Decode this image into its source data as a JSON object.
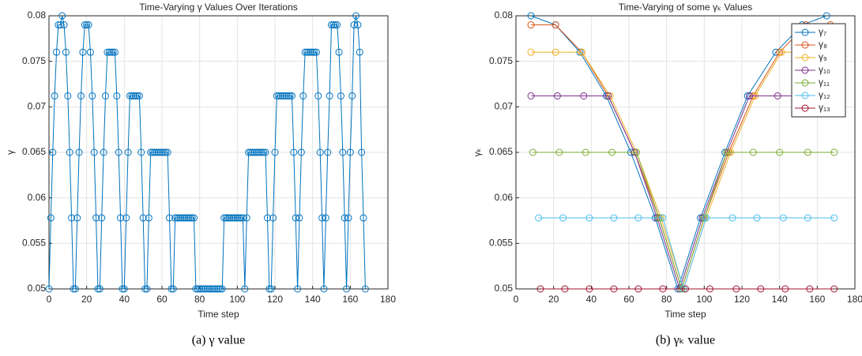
{
  "chart_data": [
    {
      "type": "line",
      "title": "Time-Varying γ Values Over Iterations",
      "xlabel": "Time step",
      "ylabel": "γ",
      "caption": "(a) γ value",
      "xlim": [
        0,
        180
      ],
      "xticks": [
        0,
        20,
        40,
        60,
        80,
        100,
        120,
        140,
        160,
        180
      ],
      "ylim": [
        0.05,
        0.08
      ],
      "yticks": [
        0.05,
        0.055,
        0.06,
        0.065,
        0.07,
        0.075,
        0.08
      ],
      "grid": true,
      "series": [
        {
          "color": "#0072BD",
          "x": [
            0,
            1,
            2,
            3,
            4,
            5,
            6,
            7,
            8,
            9,
            10,
            11,
            12,
            13,
            14,
            15,
            16,
            17,
            18,
            19,
            20,
            21,
            22,
            23,
            24,
            25,
            26,
            27,
            28,
            29,
            30,
            31,
            32,
            33,
            34,
            35,
            36,
            37,
            38,
            39,
            40,
            41,
            42,
            43,
            44,
            45,
            46,
            47,
            48,
            49,
            50,
            51,
            52,
            53,
            54,
            55,
            56,
            57,
            58,
            59,
            60,
            61,
            62,
            63,
            64,
            65,
            66,
            67,
            68,
            69,
            70,
            71,
            72,
            73,
            74,
            75,
            76,
            77,
            78,
            79,
            80,
            81,
            82,
            83,
            84,
            85,
            86,
            87,
            88,
            89,
            90,
            91,
            92,
            93,
            94,
            95,
            96,
            97,
            98,
            99,
            100,
            101,
            102,
            103,
            104,
            105,
            106,
            107,
            108,
            109,
            110,
            111,
            112,
            113,
            114,
            115,
            116,
            117,
            118,
            119,
            120,
            121,
            122,
            123,
            124,
            125,
            126,
            127,
            128,
            129,
            130,
            131,
            132,
            133,
            134,
            135,
            136,
            137,
            138,
            139,
            140,
            141,
            142,
            143,
            144,
            145,
            146,
            147,
            148,
            149,
            150,
            151,
            152,
            153,
            154,
            155,
            156,
            157,
            158,
            159,
            160,
            161,
            162,
            163,
            164,
            165,
            166,
            167,
            168
          ],
          "values": [
            0.05,
            0.0578,
            0.065,
            0.0712,
            0.076,
            0.079,
            0.079,
            0.08,
            0.079,
            0.076,
            0.0712,
            0.065,
            0.0578,
            0.05,
            0.05,
            0.0578,
            0.065,
            0.0712,
            0.076,
            0.079,
            0.079,
            0.079,
            0.076,
            0.0712,
            0.065,
            0.0578,
            0.05,
            0.05,
            0.0578,
            0.065,
            0.0712,
            0.076,
            0.076,
            0.076,
            0.076,
            0.076,
            0.0712,
            0.065,
            0.0578,
            0.05,
            0.05,
            0.0578,
            0.065,
            0.0712,
            0.0712,
            0.0712,
            0.0712,
            0.0712,
            0.0712,
            0.065,
            0.0578,
            0.05,
            0.05,
            0.0578,
            0.065,
            0.065,
            0.065,
            0.065,
            0.065,
            0.065,
            0.065,
            0.065,
            0.065,
            0.065,
            0.0578,
            0.05,
            0.05,
            0.0578,
            0.0578,
            0.0578,
            0.0578,
            0.0578,
            0.0578,
            0.0578,
            0.0578,
            0.0578,
            0.0578,
            0.0578,
            0.05,
            0.05,
            0.05,
            0.05,
            0.05,
            0.05,
            0.05,
            0.05,
            0.05,
            0.05,
            0.05,
            0.05,
            0.05,
            0.05,
            0.05,
            0.0578,
            0.0578,
            0.0578,
            0.0578,
            0.0578,
            0.0578,
            0.0578,
            0.0578,
            0.0578,
            0.0578,
            0.0578,
            0.05,
            0.0578,
            0.065,
            0.065,
            0.065,
            0.065,
            0.065,
            0.065,
            0.065,
            0.065,
            0.065,
            0.065,
            0.0578,
            0.05,
            0.05,
            0.0578,
            0.065,
            0.0712,
            0.0712,
            0.0712,
            0.0712,
            0.0712,
            0.0712,
            0.0712,
            0.0712,
            0.0712,
            0.065,
            0.0578,
            0.05,
            0.0578,
            0.065,
            0.0712,
            0.076,
            0.076,
            0.076,
            0.076,
            0.076,
            0.076,
            0.076,
            0.0712,
            0.065,
            0.0578,
            0.05,
            0.0578,
            0.065,
            0.0712,
            0.079,
            0.079,
            0.079,
            0.079,
            0.076,
            0.0712,
            0.065,
            0.0578,
            0.05,
            0.0578,
            0.065,
            0.0712,
            0.079,
            0.08,
            0.079,
            0.076,
            0.065,
            0.0578,
            0.05
          ]
        }
      ]
    },
    {
      "type": "line",
      "title": "Time-Varying of some γₖ Values",
      "xlabel": "Time step",
      "ylabel": "γₖ",
      "caption": "(b) γₖ value",
      "xlim": [
        0,
        180
      ],
      "xticks": [
        0,
        20,
        40,
        60,
        80,
        100,
        120,
        140,
        160,
        180
      ],
      "ylim": [
        0.05,
        0.08
      ],
      "yticks": [
        0.05,
        0.055,
        0.06,
        0.065,
        0.07,
        0.075,
        0.08
      ],
      "grid": true,
      "legend": "northeast",
      "series": [
        {
          "name": "γ₇",
          "color": "#0072BD",
          "x": [
            8,
            21,
            34,
            48,
            61,
            74,
            86,
            98,
            111,
            123,
            138,
            152,
            165
          ],
          "values": [
            0.08,
            0.079,
            0.076,
            0.0712,
            0.065,
            0.0578,
            0.05,
            0.0578,
            0.065,
            0.0712,
            0.076,
            0.079,
            0.08
          ]
        },
        {
          "name": "γ₈",
          "color": "#D95319",
          "x": [
            8,
            21,
            35,
            49,
            63,
            76,
            88,
            100,
            113,
            126,
            140,
            154,
            167
          ],
          "values": [
            0.079,
            0.079,
            0.076,
            0.0712,
            0.065,
            0.0578,
            0.05,
            0.0578,
            0.065,
            0.0712,
            0.076,
            0.079,
            0.079
          ]
        },
        {
          "name": "γ₉",
          "color": "#EDB120",
          "x": [
            8,
            21,
            35,
            50,
            64,
            77,
            89,
            101,
            114,
            127,
            141,
            155,
            169
          ],
          "values": [
            0.076,
            0.076,
            0.076,
            0.0712,
            0.065,
            0.0578,
            0.05,
            0.0578,
            0.065,
            0.0712,
            0.076,
            0.076,
            0.076
          ]
        },
        {
          "name": "γ₁₀",
          "color": "#7E2F8E",
          "x": [
            8,
            22,
            36,
            49,
            63,
            75,
            87,
            99,
            112,
            124,
            139,
            153,
            167
          ],
          "values": [
            0.0712,
            0.0712,
            0.0712,
            0.0712,
            0.065,
            0.0578,
            0.05,
            0.0578,
            0.065,
            0.0712,
            0.0712,
            0.0712,
            0.0712
          ]
        },
        {
          "name": "γ₁₁",
          "color": "#77AC30",
          "x": [
            9,
            23,
            37,
            51,
            64,
            76,
            88,
            100,
            112,
            126,
            140,
            155,
            169
          ],
          "values": [
            0.065,
            0.065,
            0.065,
            0.065,
            0.065,
            0.0578,
            0.05,
            0.0578,
            0.065,
            0.065,
            0.065,
            0.065,
            0.065
          ]
        },
        {
          "name": "γ₁₂",
          "color": "#4DBEEE",
          "x": [
            12,
            25,
            39,
            52,
            65,
            78,
            89,
            101,
            115,
            128,
            142,
            155,
            169
          ],
          "values": [
            0.0578,
            0.0578,
            0.0578,
            0.0578,
            0.0578,
            0.0578,
            0.05,
            0.0578,
            0.0578,
            0.0578,
            0.0578,
            0.0578,
            0.0578
          ]
        },
        {
          "name": "γ₁₃",
          "color": "#A2142F",
          "x": [
            13,
            26,
            39,
            52,
            65,
            78,
            90,
            103,
            117,
            130,
            143,
            156,
            169
          ],
          "values": [
            0.05,
            0.05,
            0.05,
            0.05,
            0.05,
            0.05,
            0.05,
            0.05,
            0.05,
            0.05,
            0.05,
            0.05,
            0.05
          ]
        }
      ]
    }
  ]
}
